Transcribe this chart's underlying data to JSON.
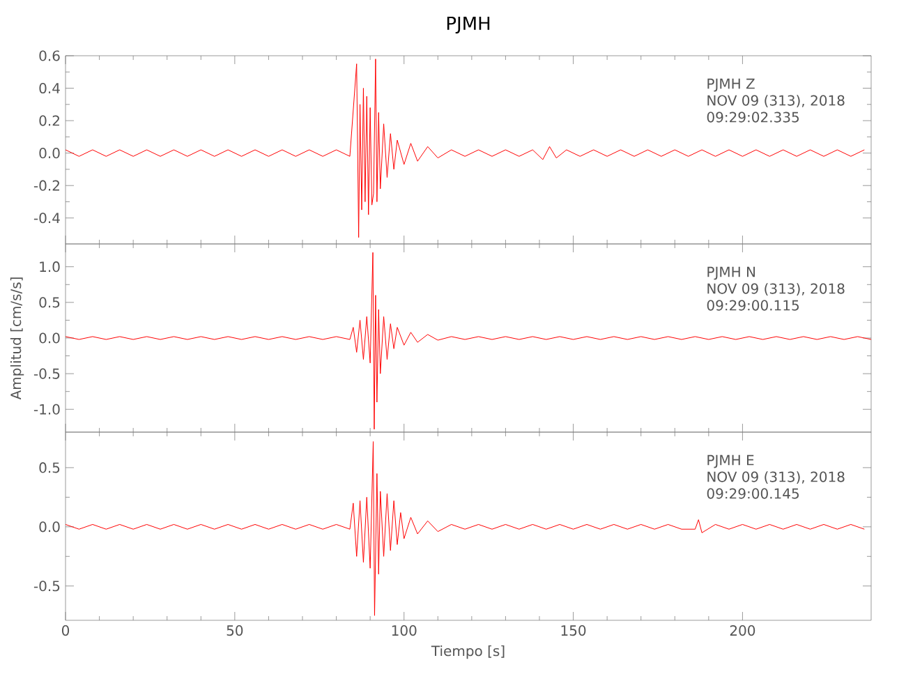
{
  "chart_data": [
    {
      "type": "line",
      "title": "PJMH",
      "annotations": [
        "PJMH   Z",
        "NOV 09 (313), 2018",
        "09:29:02.335"
      ],
      "tick_labels": "y",
      "xlim": [
        0,
        238
      ],
      "xticks": [
        0,
        50,
        100,
        150,
        200
      ],
      "ylim": [
        -0.56,
        0.6
      ],
      "yticks": [
        {
          "value": -0.4,
          "label": "-0.4"
        },
        {
          "value": -0.2,
          "label": "-0.2"
        },
        {
          "value": 0,
          "label": "0.0"
        },
        {
          "value": 0.2,
          "label": "0.2"
        },
        {
          "value": 0.4,
          "label": "0.4"
        },
        {
          "value": 0.6,
          "label": "0.6"
        }
      ],
      "x": [
        0,
        4,
        8,
        12,
        16,
        20,
        24,
        28,
        32,
        36,
        40,
        44,
        48,
        52,
        56,
        60,
        64,
        68,
        72,
        76,
        80,
        84,
        86,
        86.6,
        87,
        87.5,
        88,
        88.5,
        89,
        89.5,
        90,
        90.5,
        91,
        91.6,
        92,
        92.5,
        93,
        94,
        95,
        96,
        97,
        98,
        100,
        102,
        104,
        107,
        110,
        114,
        118,
        122,
        126,
        130,
        134,
        138,
        141,
        143,
        145,
        148,
        152,
        156,
        160,
        164,
        168,
        172,
        176,
        180,
        184,
        188,
        192,
        196,
        200,
        204,
        208,
        212,
        216,
        220,
        224,
        228,
        232,
        236
      ],
      "series": [
        {
          "color": "#ff0000",
          "values": [
            0.02,
            -0.02,
            0.02,
            -0.02,
            0.02,
            -0.02,
            0.02,
            -0.02,
            0.02,
            -0.02,
            0.02,
            -0.02,
            0.02,
            -0.02,
            0.02,
            -0.02,
            0.02,
            -0.02,
            0.02,
            -0.02,
            0.02,
            -0.02,
            0.55,
            -0.52,
            0.3,
            -0.35,
            0.4,
            -0.3,
            0.35,
            -0.38,
            0.28,
            -0.32,
            -0.25,
            0.58,
            -0.3,
            0.25,
            -0.22,
            0.18,
            -0.15,
            0.12,
            -0.1,
            0.08,
            -0.07,
            0.06,
            -0.05,
            0.04,
            -0.03,
            0.02,
            -0.02,
            0.02,
            -0.02,
            0.02,
            -0.02,
            0.02,
            -0.04,
            0.04,
            -0.03,
            0.02,
            -0.02,
            0.02,
            -0.02,
            0.02,
            -0.02,
            0.02,
            -0.02,
            0.02,
            -0.02,
            0.02,
            -0.02,
            0.02,
            -0.02,
            0.02,
            -0.02,
            0.02,
            -0.02,
            0.02,
            -0.02,
            0.02,
            -0.02,
            0.02
          ]
        }
      ]
    },
    {
      "type": "line",
      "ylabel": "Amplitud [cm/s/s]",
      "annotations": [
        "PJMH   N",
        "NOV 09 (313), 2018",
        "09:29:00.115"
      ],
      "tick_labels": "y",
      "xlim": [
        0,
        238
      ],
      "xticks": [
        0,
        50,
        100,
        150,
        200
      ],
      "ylim": [
        -1.32,
        1.32
      ],
      "yticks": [
        {
          "value": -1.0,
          "label": "-1.0"
        },
        {
          "value": -0.5,
          "label": "-0.5"
        },
        {
          "value": 0,
          "label": "0.0"
        },
        {
          "value": 0.5,
          "label": "0.5"
        },
        {
          "value": 1.0,
          "label": "1.0"
        }
      ],
      "x": [
        0,
        4,
        8,
        12,
        16,
        20,
        24,
        28,
        32,
        36,
        40,
        44,
        48,
        52,
        56,
        60,
        64,
        68,
        72,
        76,
        80,
        84,
        85,
        86,
        87,
        88,
        89,
        90,
        90.8,
        91.2,
        91.6,
        92,
        92.5,
        93,
        94,
        95,
        96,
        97,
        98,
        100,
        102,
        104,
        107,
        110,
        114,
        118,
        122,
        126,
        130,
        134,
        138,
        142,
        146,
        150,
        154,
        158,
        162,
        166,
        170,
        174,
        178,
        182,
        186,
        190,
        194,
        198,
        202,
        206,
        210,
        214,
        218,
        222,
        226,
        230,
        234,
        238
      ],
      "series": [
        {
          "color": "#ff0000",
          "values": [
            0.02,
            -0.02,
            0.02,
            -0.02,
            0.02,
            -0.02,
            0.02,
            -0.02,
            0.02,
            -0.02,
            0.02,
            -0.02,
            0.02,
            -0.02,
            0.02,
            -0.02,
            0.02,
            -0.02,
            0.02,
            -0.02,
            0.02,
            -0.02,
            0.15,
            -0.2,
            0.25,
            -0.3,
            0.3,
            -0.35,
            1.2,
            -1.28,
            0.6,
            -0.9,
            0.4,
            -0.5,
            0.3,
            -0.3,
            0.2,
            -0.15,
            0.15,
            -0.1,
            0.08,
            -0.06,
            0.05,
            -0.03,
            0.02,
            -0.02,
            0.02,
            -0.02,
            0.02,
            -0.02,
            0.02,
            -0.02,
            0.02,
            -0.02,
            0.02,
            -0.02,
            0.02,
            -0.02,
            0.02,
            -0.02,
            0.02,
            -0.02,
            0.02,
            -0.02,
            0.02,
            -0.02,
            0.02,
            -0.02,
            0.02,
            -0.02,
            0.02,
            -0.02,
            0.02,
            -0.02,
            0.02,
            -0.02
          ]
        }
      ]
    },
    {
      "type": "line",
      "xlabel": "Tiempo [s]",
      "annotations": [
        "PJMH   E",
        "NOV 09 (313), 2018",
        "09:29:00.145"
      ],
      "xlim": [
        0,
        238
      ],
      "xticks": [
        0,
        50,
        100,
        150,
        200
      ],
      "ylim": [
        -0.79,
        0.8
      ],
      "yticks": [
        {
          "value": -0.5,
          "label": "-0.5"
        },
        {
          "value": 0,
          "label": "0.0"
        },
        {
          "value": 0.5,
          "label": "0.5"
        }
      ],
      "x": [
        0,
        4,
        8,
        12,
        16,
        20,
        24,
        28,
        32,
        36,
        40,
        44,
        48,
        52,
        56,
        60,
        64,
        68,
        72,
        76,
        80,
        84,
        85,
        86,
        87,
        88,
        89,
        90,
        90.9,
        91.3,
        92,
        92.5,
        93,
        94,
        95,
        96,
        97,
        98,
        99,
        100,
        102,
        104,
        107,
        110,
        114,
        118,
        122,
        126,
        130,
        134,
        138,
        142,
        146,
        150,
        154,
        158,
        162,
        166,
        170,
        174,
        178,
        182,
        186,
        187,
        188,
        192,
        196,
        200,
        204,
        208,
        212,
        216,
        220,
        224,
        228,
        232,
        236
      ],
      "series": [
        {
          "color": "#ff0000",
          "values": [
            0.02,
            -0.02,
            0.02,
            -0.02,
            0.02,
            -0.02,
            0.02,
            -0.02,
            0.02,
            -0.02,
            0.02,
            -0.02,
            0.02,
            -0.02,
            0.02,
            -0.02,
            0.02,
            -0.02,
            0.02,
            -0.02,
            0.02,
            -0.02,
            0.2,
            -0.25,
            0.22,
            -0.3,
            0.25,
            -0.35,
            0.72,
            -0.75,
            0.45,
            -0.4,
            0.3,
            -0.25,
            0.28,
            -0.2,
            0.22,
            -0.15,
            0.12,
            -0.1,
            0.08,
            -0.06,
            0.05,
            -0.04,
            0.02,
            -0.02,
            0.02,
            -0.02,
            0.02,
            -0.02,
            0.02,
            -0.02,
            0.02,
            -0.02,
            0.02,
            -0.02,
            0.02,
            -0.02,
            0.02,
            -0.02,
            0.02,
            -0.02,
            -0.02,
            0.06,
            -0.05,
            0.02,
            -0.02,
            0.02,
            -0.02,
            0.02,
            -0.02,
            0.02,
            -0.02,
            0.02,
            -0.02,
            0.02,
            -0.02
          ]
        }
      ]
    }
  ]
}
